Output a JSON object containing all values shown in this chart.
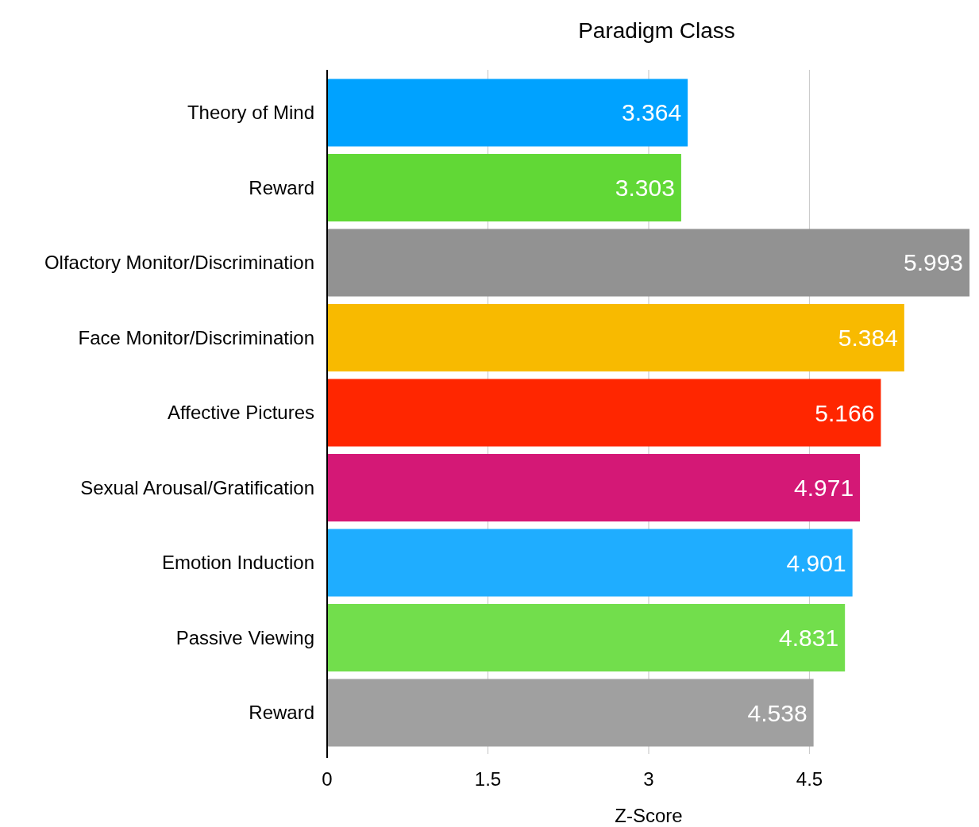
{
  "chart_data": {
    "type": "bar",
    "orientation": "horizontal",
    "title": "Paradigm Class",
    "xlabel": "Z-Score",
    "categories": [
      "Theory of Mind",
      "Reward",
      "Olfactory Monitor/Discrimination",
      "Face Monitor/Discrimination",
      "Affective Pictures",
      "Sexual Arousal/Gratification",
      "Emotion Induction",
      "Passive Viewing",
      "Reward"
    ],
    "values": [
      3.364,
      3.303,
      5.993,
      5.384,
      5.166,
      4.971,
      4.901,
      4.831,
      4.538
    ],
    "colors": [
      "#00a2ff",
      "#61d836",
      "#929292",
      "#f8ba00",
      "#ff2600",
      "#d41876",
      "#1fadff",
      "#72de4c",
      "#a0a0a0"
    ],
    "xlim": [
      0,
      6
    ],
    "xticks": [
      0,
      1.5,
      3,
      4.5
    ],
    "grid": "x",
    "data_labels": true
  }
}
